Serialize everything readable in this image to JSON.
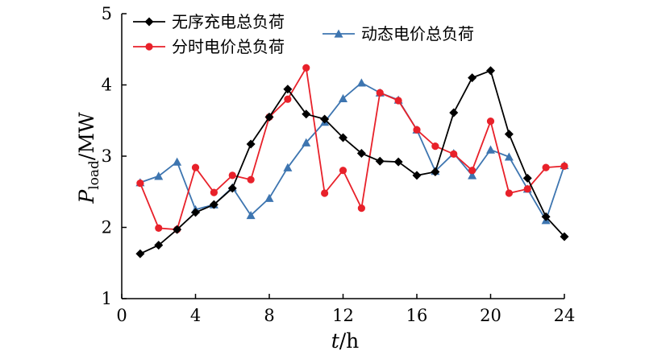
{
  "chart_data": {
    "type": "line",
    "title": "",
    "xlabel_var": "t",
    "xlabel_unit": "/h",
    "ylabel_var": "P",
    "ylabel_sub": "load",
    "ylabel_unit": "/MW",
    "xlim": [
      0,
      24
    ],
    "ylim": [
      1,
      5
    ],
    "xticks": [
      0,
      4,
      8,
      12,
      16,
      20,
      24
    ],
    "yticks": [
      1,
      2,
      3,
      4,
      5
    ],
    "grid": false,
    "legend_position": "top-left",
    "x": [
      1,
      2,
      3,
      4,
      5,
      6,
      7,
      8,
      9,
      10,
      11,
      12,
      13,
      14,
      15,
      16,
      17,
      18,
      19,
      20,
      21,
      22,
      23,
      24
    ],
    "series": [
      {
        "name": "无序充电总负荷",
        "color": "#000000",
        "marker": "diamond",
        "values": [
          1.63,
          1.75,
          1.97,
          2.21,
          2.32,
          2.55,
          3.17,
          3.55,
          3.94,
          3.59,
          3.52,
          3.26,
          3.04,
          2.93,
          2.92,
          2.73,
          2.78,
          3.61,
          4.1,
          4.2,
          3.31,
          2.69,
          2.15,
          1.87
        ]
      },
      {
        "name": "分时电价总负荷",
        "color": "#e8212a",
        "marker": "circle",
        "values": [
          2.62,
          1.99,
          1.97,
          2.84,
          2.49,
          2.73,
          2.67,
          3.55,
          3.8,
          4.24,
          2.48,
          2.8,
          2.27,
          3.89,
          3.78,
          3.37,
          3.14,
          3.03,
          2.8,
          3.49,
          2.48,
          2.54,
          2.84,
          2.86
        ]
      },
      {
        "name": "动态电价总负荷",
        "color": "#3d75b0",
        "marker": "triangle",
        "values": [
          2.63,
          2.72,
          2.92,
          2.25,
          2.32,
          2.56,
          2.17,
          2.41,
          2.84,
          3.19,
          3.48,
          3.81,
          4.03,
          3.89,
          3.79,
          3.37,
          2.79,
          3.04,
          2.73,
          3.09,
          2.99,
          2.54,
          2.1,
          2.87
        ]
      }
    ]
  }
}
